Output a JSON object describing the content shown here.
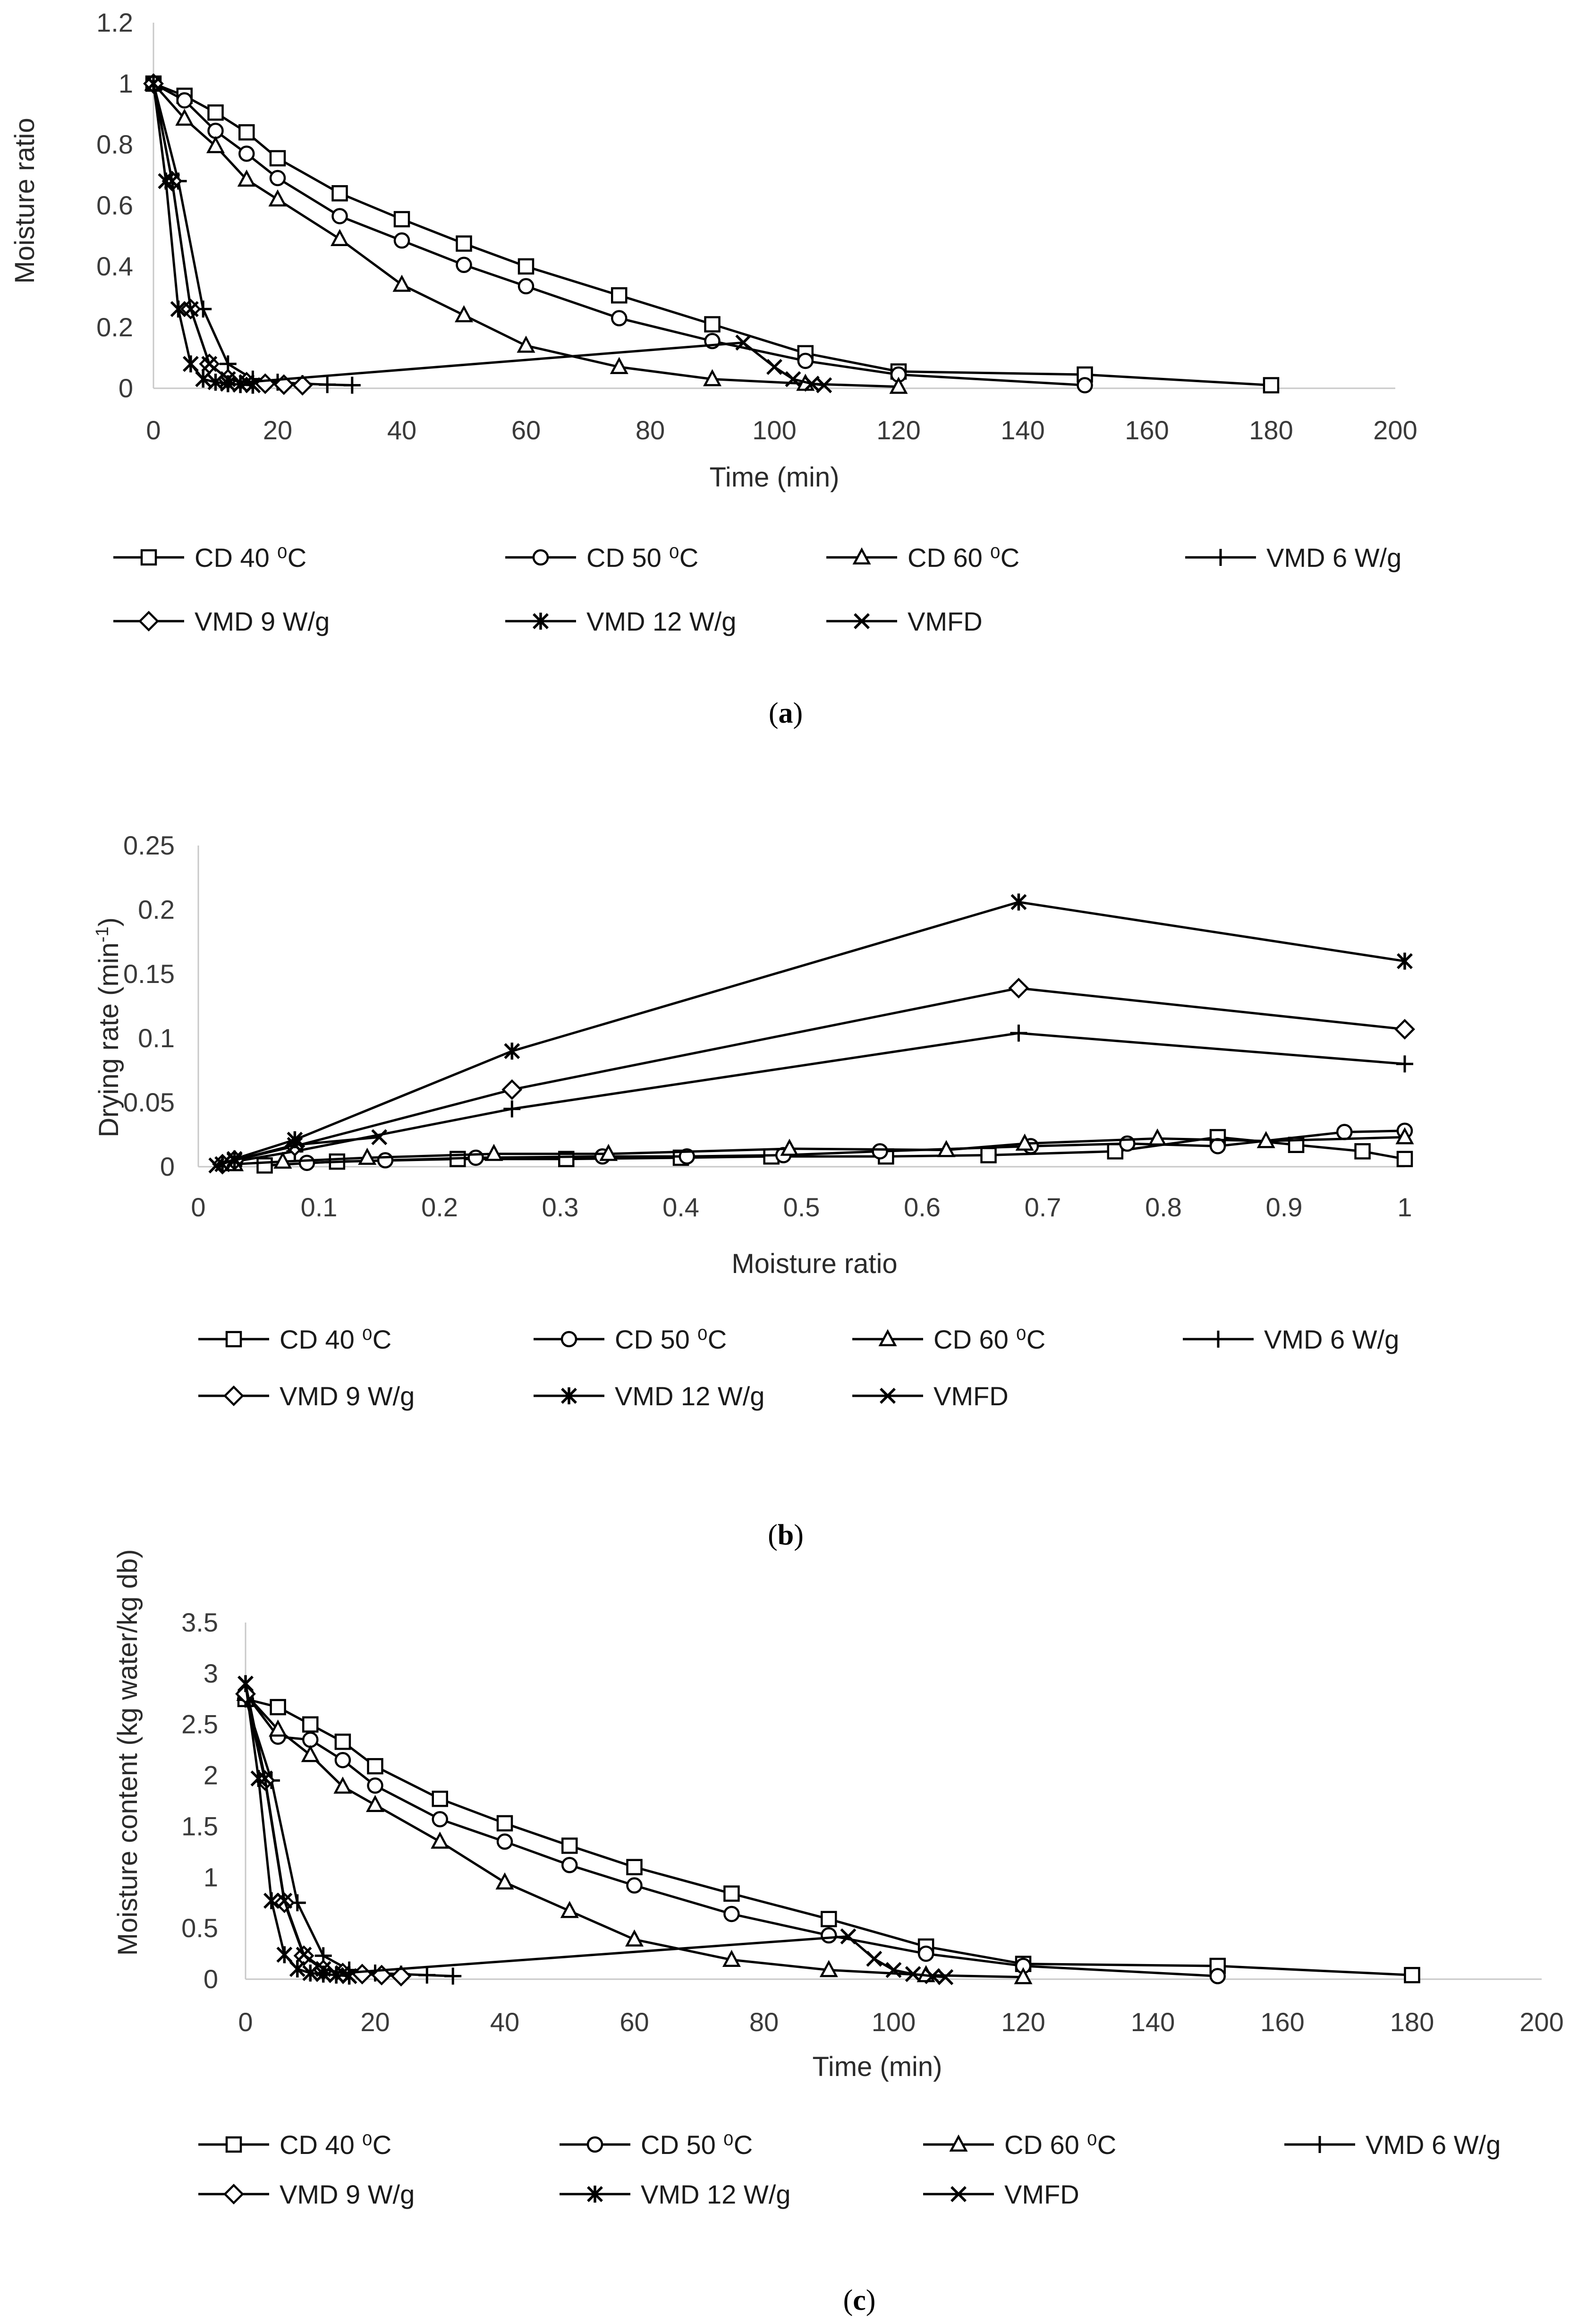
{
  "figure": {
    "series_names": [
      "CD 40 ⁰C",
      "CD 50 ⁰C",
      "CD 60 ⁰C",
      "VMD 6 W/g",
      "VMD 9 W/g",
      "VMD 12 W/g",
      "VMFD"
    ],
    "markers": [
      "square",
      "circle",
      "triangle",
      "plus",
      "diamond",
      "star",
      "cross"
    ],
    "colors": {
      "line": "#000000",
      "axis": "#c8c8c8",
      "text": "#3a3a3a"
    }
  },
  "chart_data": [
    {
      "id": "a",
      "caption": {
        "open": "(",
        "letter": "a",
        "close": ")"
      },
      "type": "line",
      "xlabel": "Time (min)",
      "ylabel": "Moisture ratio",
      "xlim": [
        0,
        200
      ],
      "ylim": [
        0,
        1.2
      ],
      "xticks": [
        0,
        20,
        40,
        60,
        80,
        100,
        120,
        140,
        160,
        180,
        200
      ],
      "yticks": [
        0,
        0.2,
        0.4,
        0.6,
        0.8,
        1,
        1.2
      ],
      "xtick_labels": [
        "0",
        "20",
        "40",
        "60",
        "80",
        "100",
        "120",
        "140",
        "160",
        "180",
        "200"
      ],
      "ytick_labels": [
        "0",
        "0.2",
        "0.4",
        "0.6",
        "0.8",
        "1",
        "1.2"
      ],
      "series": [
        {
          "name": "CD 40 ⁰C",
          "x": [
            0,
            5,
            10,
            15,
            20,
            30,
            40,
            50,
            60,
            75,
            90,
            105,
            120,
            150,
            180
          ],
          "y": [
            1,
            0.96,
            0.905,
            0.84,
            0.755,
            0.64,
            0.555,
            0.475,
            0.4,
            0.305,
            0.21,
            0.115,
            0.055,
            0.045,
            0.01
          ]
        },
        {
          "name": "CD 50 ⁰C",
          "x": [
            0,
            5,
            10,
            15,
            20,
            30,
            40,
            50,
            60,
            75,
            90,
            105,
            120,
            150
          ],
          "y": [
            1,
            0.945,
            0.845,
            0.77,
            0.69,
            0.565,
            0.485,
            0.405,
            0.335,
            0.23,
            0.155,
            0.09,
            0.045,
            0.01
          ]
        },
        {
          "name": "CD 60 ⁰C",
          "x": [
            0,
            5,
            10,
            15,
            20,
            30,
            40,
            50,
            60,
            75,
            90,
            105,
            120
          ],
          "y": [
            1,
            0.885,
            0.795,
            0.685,
            0.62,
            0.49,
            0.34,
            0.24,
            0.14,
            0.07,
            0.03,
            0.015,
            0.005
          ]
        },
        {
          "name": "VMD 6 W/g",
          "x": [
            0,
            4,
            8,
            12,
            16,
            20,
            24,
            28,
            32
          ],
          "y": [
            1,
            0.68,
            0.26,
            0.08,
            0.03,
            0.02,
            0.015,
            0.012,
            0.01
          ]
        },
        {
          "name": "VMD 9 W/g",
          "x": [
            0,
            3,
            6,
            9,
            12,
            15,
            18,
            21,
            24
          ],
          "y": [
            1,
            0.68,
            0.26,
            0.08,
            0.03,
            0.02,
            0.015,
            0.012,
            0.01
          ]
        },
        {
          "name": "VMD 12 W/g",
          "x": [
            0,
            2,
            4,
            6,
            8,
            10,
            12,
            14,
            16
          ],
          "y": [
            1,
            0.68,
            0.26,
            0.08,
            0.03,
            0.02,
            0.015,
            0.012,
            0.01
          ]
        },
        {
          "name": "VMFD",
          "x": [
            0,
            3,
            6,
            9,
            12,
            15,
            95,
            100,
            103,
            106,
            108
          ],
          "y": [
            1,
            0.68,
            0.26,
            0.08,
            0.03,
            0.02,
            0.15,
            0.07,
            0.03,
            0.015,
            0.01
          ]
        }
      ]
    },
    {
      "id": "b",
      "caption": {
        "open": "(",
        "letter": "b",
        "close": ")"
      },
      "type": "line",
      "xlabel": "Moisture ratio",
      "ylabel": "Drying rate (min",
      "ylabel_sup": "-1",
      "ylabel_close": ")",
      "xlim": [
        0,
        1
      ],
      "ylim": [
        0,
        0.25
      ],
      "xticks": [
        0,
        0.1,
        0.2,
        0.3,
        0.4,
        0.5,
        0.6,
        0.7,
        0.8,
        0.9,
        1
      ],
      "yticks": [
        0,
        0.05,
        0.1,
        0.15,
        0.2,
        0.25
      ],
      "xtick_labels": [
        "0",
        "0.1",
        "0.2",
        "0.3",
        "0.4",
        "0.5",
        "0.6",
        "0.7",
        "0.8",
        "0.9",
        "1"
      ],
      "ytick_labels": [
        "0",
        "0.05",
        "0.1",
        "0.15",
        "0.2",
        "0.25"
      ],
      "series": [
        {
          "name": "CD 40 ⁰C",
          "x": [
            1,
            0.965,
            0.91,
            0.845,
            0.76,
            0.655,
            0.57,
            0.475,
            0.4,
            0.305,
            0.215,
            0.115,
            0.055
          ],
          "y": [
            0.006,
            0.012,
            0.017,
            0.023,
            0.012,
            0.009,
            0.008,
            0.008,
            0.007,
            0.006,
            0.006,
            0.004,
            0.001
          ]
        },
        {
          "name": "CD 50 ⁰C",
          "x": [
            1,
            0.95,
            0.845,
            0.77,
            0.69,
            0.565,
            0.485,
            0.405,
            0.335,
            0.23,
            0.155,
            0.09
          ],
          "y": [
            0.028,
            0.027,
            0.016,
            0.018,
            0.016,
            0.012,
            0.009,
            0.008,
            0.008,
            0.007,
            0.005,
            0.003
          ]
        },
        {
          "name": "CD 60 ⁰C",
          "x": [
            1,
            0.885,
            0.795,
            0.685,
            0.62,
            0.49,
            0.34,
            0.245,
            0.14,
            0.07,
            0.03
          ],
          "y": [
            0.023,
            0.02,
            0.022,
            0.018,
            0.013,
            0.014,
            0.01,
            0.01,
            0.007,
            0.004,
            0.002
          ]
        },
        {
          "name": "VMD 6 W/g",
          "x": [
            1,
            0.68,
            0.26,
            0.08,
            0.03,
            0.02
          ],
          "y": [
            0.08,
            0.104,
            0.045,
            0.012,
            0.004,
            0.002
          ]
        },
        {
          "name": "VMD 9 W/g",
          "x": [
            1,
            0.68,
            0.26,
            0.08,
            0.03,
            0.02
          ],
          "y": [
            0.107,
            0.139,
            0.06,
            0.016,
            0.005,
            0.002
          ]
        },
        {
          "name": "VMD 12 W/g",
          "x": [
            1,
            0.68,
            0.26,
            0.08,
            0.03,
            0.02
          ],
          "y": [
            0.16,
            0.206,
            0.09,
            0.021,
            0.006,
            0.002
          ]
        },
        {
          "name": "VMFD",
          "x": [
            0.15,
            0.08,
            0.03,
            0.015
          ],
          "y": [
            0.023,
            0.017,
            0.005,
            0.001
          ]
        }
      ]
    },
    {
      "id": "c",
      "caption": {
        "open": "(",
        "letter": "c",
        "close": ")"
      },
      "type": "line",
      "xlabel": "Time (min)",
      "ylabel": "Moisture content (kg water/kg db)",
      "xlim": [
        0,
        200
      ],
      "ylim": [
        0,
        3.5
      ],
      "xticks": [
        0,
        20,
        40,
        60,
        80,
        100,
        120,
        140,
        160,
        180,
        200
      ],
      "yticks": [
        0,
        0.5,
        1,
        1.5,
        2,
        2.5,
        3,
        3.5
      ],
      "xtick_labels": [
        "0",
        "20",
        "40",
        "60",
        "80",
        "100",
        "120",
        "140",
        "160",
        "180",
        "200"
      ],
      "ytick_labels": [
        "0",
        "0.5",
        "1",
        "1.5",
        "2",
        "2.5",
        "3",
        "3.5"
      ],
      "series": [
        {
          "name": "CD 40 ⁰C",
          "x": [
            0,
            5,
            10,
            15,
            20,
            30,
            40,
            50,
            60,
            75,
            90,
            105,
            120,
            150,
            180
          ],
          "y": [
            2.75,
            2.67,
            2.5,
            2.33,
            2.09,
            1.77,
            1.53,
            1.31,
            1.1,
            0.84,
            0.59,
            0.32,
            0.15,
            0.13,
            0.04
          ]
        },
        {
          "name": "CD 50 ⁰C",
          "x": [
            0,
            5,
            10,
            15,
            20,
            30,
            40,
            50,
            60,
            75,
            90,
            105,
            120,
            150
          ],
          "y": [
            2.8,
            2.38,
            2.35,
            2.15,
            1.9,
            1.57,
            1.35,
            1.12,
            0.92,
            0.64,
            0.43,
            0.25,
            0.13,
            0.03
          ]
        },
        {
          "name": "CD 60 ⁰C",
          "x": [
            0,
            5,
            10,
            15,
            20,
            30,
            40,
            50,
            60,
            75,
            90,
            105,
            120
          ],
          "y": [
            2.8,
            2.45,
            2.2,
            1.89,
            1.71,
            1.35,
            0.95,
            0.67,
            0.39,
            0.19,
            0.09,
            0.04,
            0.02
          ]
        },
        {
          "name": "VMD 6 W/g",
          "x": [
            0,
            4,
            8,
            12,
            16,
            20,
            24,
            28,
            32
          ],
          "y": [
            2.75,
            1.95,
            0.75,
            0.23,
            0.09,
            0.06,
            0.05,
            0.04,
            0.03
          ]
        },
        {
          "name": "VMD 9 W/g",
          "x": [
            0,
            3,
            6,
            9,
            12,
            15,
            18,
            21,
            24
          ],
          "y": [
            2.8,
            1.95,
            0.75,
            0.23,
            0.09,
            0.06,
            0.05,
            0.04,
            0.03
          ]
        },
        {
          "name": "VMD 12 W/g",
          "x": [
            0,
            2,
            4,
            6,
            8,
            10,
            12,
            14,
            16
          ],
          "y": [
            2.9,
            1.97,
            0.77,
            0.24,
            0.1,
            0.06,
            0.05,
            0.04,
            0.03
          ]
        },
        {
          "name": "VMFD",
          "x": [
            0,
            3,
            6,
            9,
            12,
            15,
            93,
            97,
            100,
            103,
            106,
            108
          ],
          "y": [
            2.9,
            1.97,
            0.77,
            0.24,
            0.1,
            0.06,
            0.42,
            0.2,
            0.09,
            0.05,
            0.03,
            0.02
          ]
        }
      ]
    }
  ]
}
